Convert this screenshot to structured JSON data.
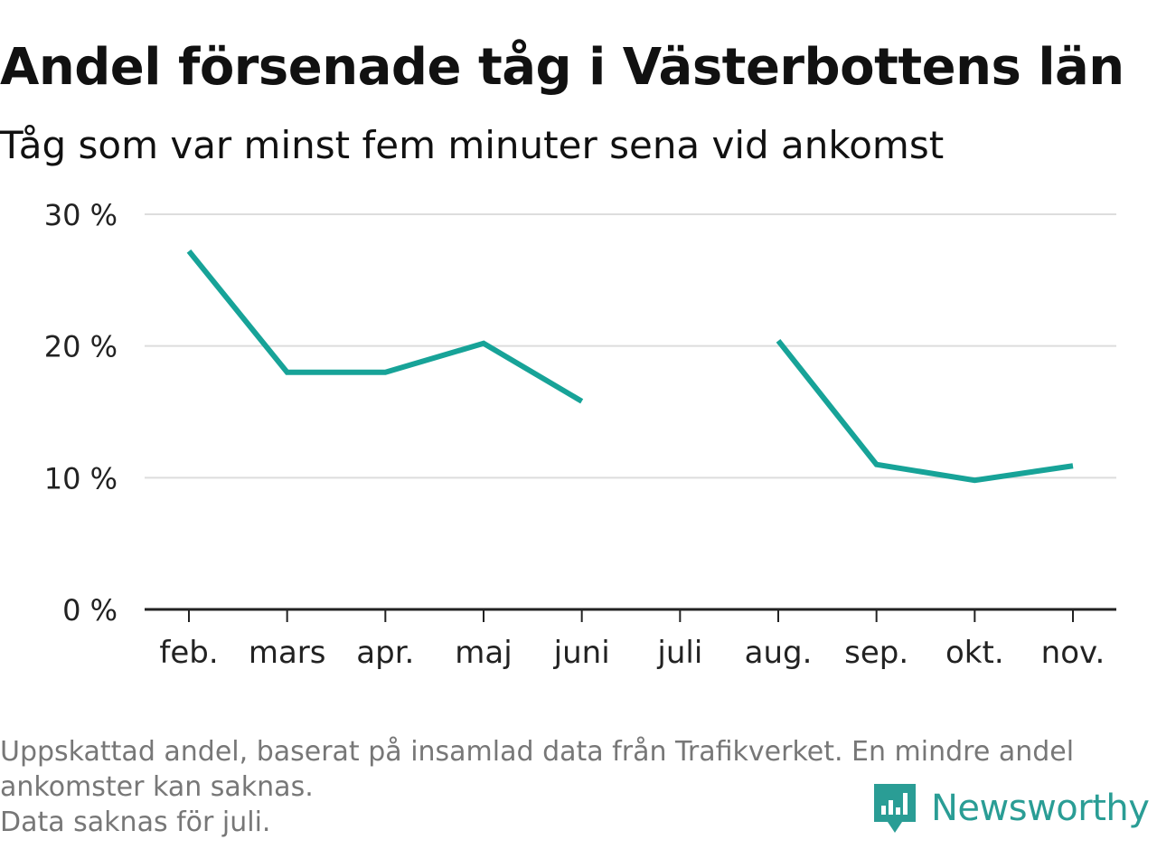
{
  "header": {
    "title": "Andel försenade tåg i Västerbottens län",
    "subtitle": "Tåg som var minst fem minuter sena vid ankomst"
  },
  "chart_data": {
    "type": "line",
    "title": "Andel försenade tåg i Västerbottens län",
    "subtitle": "Tåg som var minst fem minuter sena vid ankomst",
    "categories": [
      "feb.",
      "mars",
      "apr.",
      "maj",
      "juni",
      "juli",
      "aug.",
      "sep.",
      "okt.",
      "nov."
    ],
    "series": [
      {
        "values": [
          27.2,
          18.0,
          18.0,
          20.2,
          15.8,
          null,
          20.4,
          11.0,
          9.8,
          10.9
        ]
      }
    ],
    "yticks": [
      "0 %",
      "10 %",
      "20 %",
      "30 %"
    ],
    "ylim": [
      0,
      30
    ],
    "grid": true,
    "line_color": "#17a398"
  },
  "footer": {
    "note_line1": "Uppskattad andel, baserat på insamlad data från Trafikverket. En mindre andel",
    "note_line2": "ankomster kan saknas.",
    "note_line3": "Data saknas för juli."
  },
  "brand": {
    "name": "Newsworthy",
    "icon": "newsworthy-logo-icon",
    "color": "#2a9d95"
  }
}
